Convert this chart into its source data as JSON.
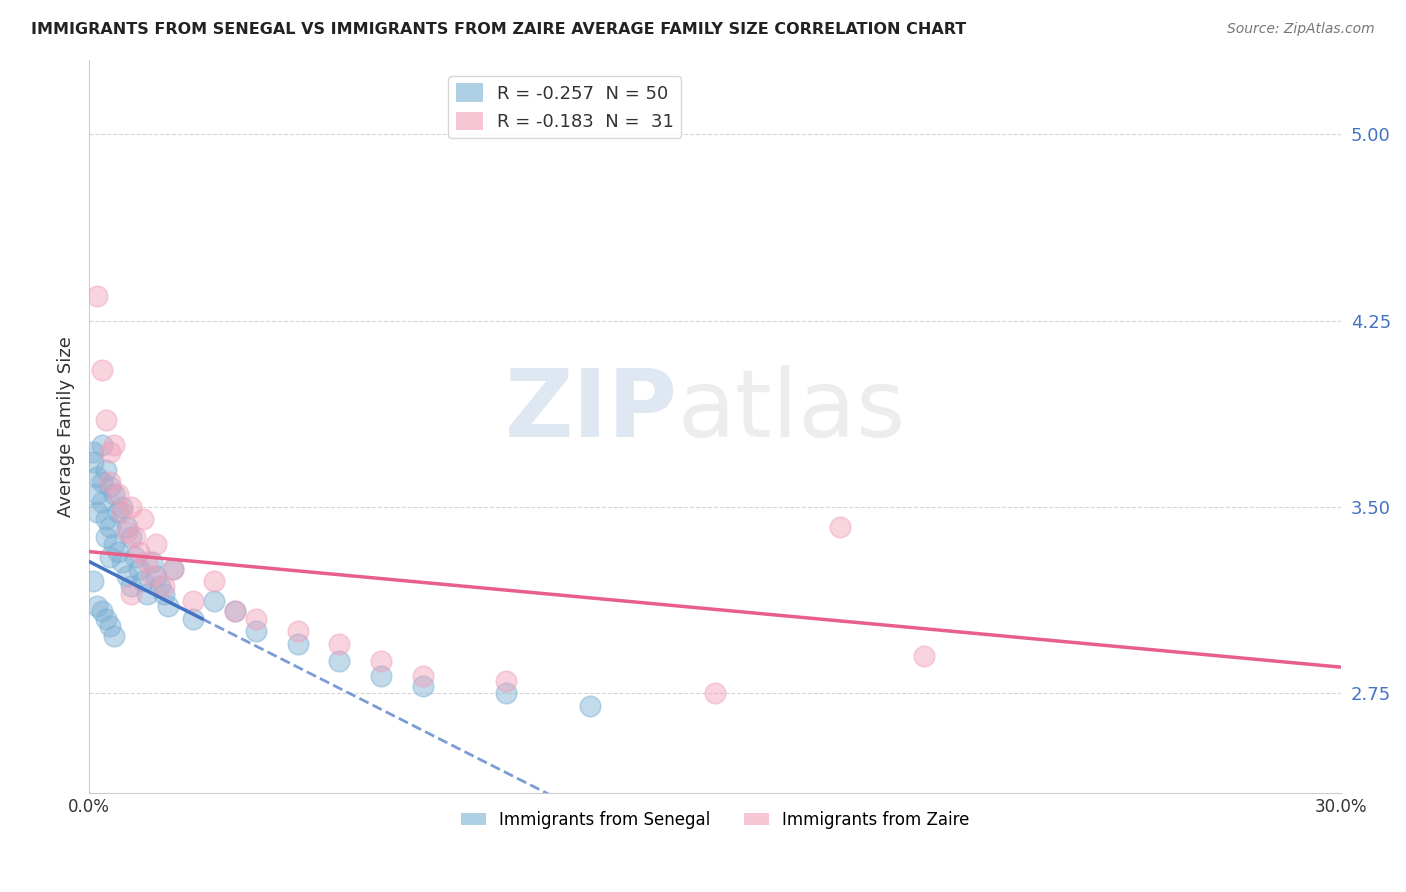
{
  "title": "IMMIGRANTS FROM SENEGAL VS IMMIGRANTS FROM ZAIRE AVERAGE FAMILY SIZE CORRELATION CHART",
  "source": "Source: ZipAtlas.com",
  "ylabel": "Average Family Size",
  "yticks": [
    2.75,
    3.5,
    4.25,
    5.0
  ],
  "xlim": [
    0.0,
    0.3
  ],
  "ylim": [
    2.35,
    5.3
  ],
  "senegal_line_color": "#4472c4",
  "zaire_line_color": "#e8608a",
  "senegal_scatter_color": "#7bafd4",
  "zaire_scatter_color": "#f0a0b8",
  "background_color": "#ffffff",
  "grid_color": "#cccccc",
  "senegal_points": [
    [
      0.001,
      3.72
    ],
    [
      0.001,
      3.68
    ],
    [
      0.002,
      3.62
    ],
    [
      0.002,
      3.55
    ],
    [
      0.002,
      3.48
    ],
    [
      0.003,
      3.75
    ],
    [
      0.003,
      3.6
    ],
    [
      0.003,
      3.52
    ],
    [
      0.004,
      3.65
    ],
    [
      0.004,
      3.45
    ],
    [
      0.004,
      3.38
    ],
    [
      0.005,
      3.58
    ],
    [
      0.005,
      3.42
    ],
    [
      0.005,
      3.3
    ],
    [
      0.006,
      3.55
    ],
    [
      0.006,
      3.35
    ],
    [
      0.007,
      3.48
    ],
    [
      0.007,
      3.32
    ],
    [
      0.008,
      3.5
    ],
    [
      0.008,
      3.28
    ],
    [
      0.009,
      3.42
    ],
    [
      0.009,
      3.22
    ],
    [
      0.01,
      3.38
    ],
    [
      0.01,
      3.18
    ],
    [
      0.011,
      3.3
    ],
    [
      0.012,
      3.25
    ],
    [
      0.013,
      3.2
    ],
    [
      0.014,
      3.15
    ],
    [
      0.015,
      3.28
    ],
    [
      0.016,
      3.22
    ],
    [
      0.017,
      3.18
    ],
    [
      0.018,
      3.15
    ],
    [
      0.019,
      3.1
    ],
    [
      0.02,
      3.25
    ],
    [
      0.025,
      3.05
    ],
    [
      0.03,
      3.12
    ],
    [
      0.035,
      3.08
    ],
    [
      0.04,
      3.0
    ],
    [
      0.05,
      2.95
    ],
    [
      0.06,
      2.88
    ],
    [
      0.07,
      2.82
    ],
    [
      0.08,
      2.78
    ],
    [
      0.1,
      2.75
    ],
    [
      0.12,
      2.7
    ],
    [
      0.001,
      3.2
    ],
    [
      0.002,
      3.1
    ],
    [
      0.003,
      3.08
    ],
    [
      0.004,
      3.05
    ],
    [
      0.005,
      3.02
    ],
    [
      0.006,
      2.98
    ]
  ],
  "zaire_points": [
    [
      0.002,
      4.35
    ],
    [
      0.003,
      4.05
    ],
    [
      0.004,
      3.85
    ],
    [
      0.005,
      3.72
    ],
    [
      0.005,
      3.6
    ],
    [
      0.006,
      3.75
    ],
    [
      0.007,
      3.55
    ],
    [
      0.008,
      3.48
    ],
    [
      0.009,
      3.4
    ],
    [
      0.01,
      3.5
    ],
    [
      0.011,
      3.38
    ],
    [
      0.012,
      3.32
    ],
    [
      0.013,
      3.45
    ],
    [
      0.014,
      3.28
    ],
    [
      0.015,
      3.22
    ],
    [
      0.016,
      3.35
    ],
    [
      0.018,
      3.18
    ],
    [
      0.02,
      3.25
    ],
    [
      0.025,
      3.12
    ],
    [
      0.03,
      3.2
    ],
    [
      0.035,
      3.08
    ],
    [
      0.04,
      3.05
    ],
    [
      0.05,
      3.0
    ],
    [
      0.06,
      2.95
    ],
    [
      0.07,
      2.88
    ],
    [
      0.08,
      2.82
    ],
    [
      0.1,
      2.8
    ],
    [
      0.15,
      2.75
    ],
    [
      0.18,
      3.42
    ],
    [
      0.2,
      2.9
    ],
    [
      0.01,
      3.15
    ]
  ],
  "legend_top": [
    {
      "r": "-0.257",
      "n": "50"
    },
    {
      "r": "-0.183",
      "n": "31"
    }
  ],
  "legend_bottom_labels": [
    "Immigrants from Senegal",
    "Immigrants from Zaire"
  ]
}
